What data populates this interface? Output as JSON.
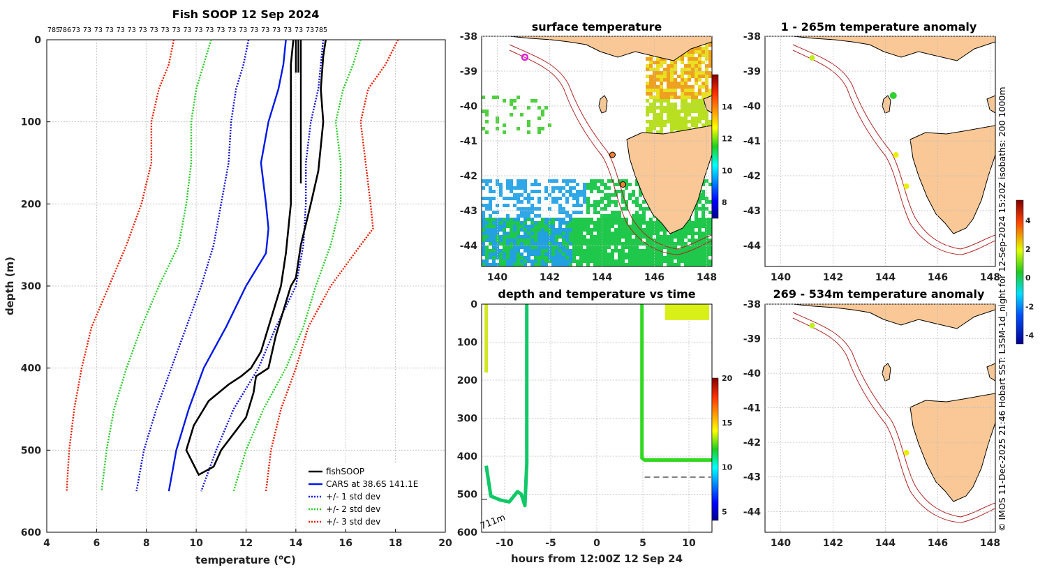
{
  "chart_data": [
    {
      "type": "line",
      "title": "Fish SOOP 12 Sep 2024",
      "xlabel": "temperature (",
      "xlabel_sup": "o",
      "xlabel_tail": "C)",
      "ylabel": "depth (m)",
      "xlim": [
        4,
        20
      ],
      "ylim": [
        600,
        0
      ],
      "xticks": [
        "4",
        "6",
        "8",
        "10",
        "12",
        "14",
        "16",
        "18",
        "20"
      ],
      "yticks": [
        "0",
        "100",
        "200",
        "300",
        "400",
        "500",
        "600"
      ],
      "top_counts": [
        "785",
        "786",
        "73",
        "73",
        "73",
        "73",
        "73",
        "73",
        "73",
        "73",
        "73",
        "73",
        "73",
        "73",
        "73",
        "73",
        "73",
        "73",
        "73",
        "73",
        "73",
        "73",
        "73",
        "73",
        "785"
      ],
      "legend": [
        "fishSOOP",
        "CARS at 38.6S 141.1E",
        "+/- 1 std dev",
        "+/- 2 std dev",
        "+/- 3 std dev"
      ],
      "series": [
        {
          "name": "CARS at 38.6S 141.1E",
          "depth": [
            0,
            30,
            60,
            100,
            150,
            200,
            230,
            260,
            300,
            350,
            400,
            450,
            500,
            550
          ],
          "temp": [
            13.6,
            13.5,
            13.3,
            12.9,
            12.6,
            12.8,
            12.9,
            12.8,
            12.0,
            11.2,
            10.3,
            9.7,
            9.2,
            8.9
          ]
        },
        {
          "name": "+/- 1 std dev lower",
          "depth": [
            0,
            30,
            60,
            100,
            150,
            200,
            250,
            300,
            350,
            400,
            450,
            500,
            550
          ],
          "temp": [
            12.1,
            11.9,
            11.6,
            11.4,
            11.3,
            11.0,
            10.7,
            10.2,
            9.6,
            9.0,
            8.4,
            7.9,
            7.6
          ]
        },
        {
          "name": "+/- 1 std dev upper",
          "depth": [
            0,
            30,
            60,
            100,
            150,
            200,
            250,
            300,
            350,
            400,
            450,
            500,
            550
          ],
          "temp": [
            15.1,
            15.0,
            14.9,
            14.6,
            14.4,
            14.4,
            14.3,
            14.0,
            13.2,
            12.5,
            11.5,
            10.8,
            10.2
          ]
        },
        {
          "name": "+/- 2 std dev lower",
          "depth": [
            0,
            30,
            60,
            100,
            150,
            200,
            250,
            300,
            350,
            400,
            450,
            500,
            550
          ],
          "temp": [
            10.6,
            10.3,
            10.0,
            9.8,
            9.8,
            9.6,
            9.3,
            8.5,
            7.8,
            7.2,
            6.7,
            6.4,
            6.2
          ]
        },
        {
          "name": "+/- 2 std dev upper",
          "depth": [
            0,
            30,
            60,
            100,
            150,
            200,
            250,
            300,
            350,
            400,
            450,
            500,
            550
          ],
          "temp": [
            16.6,
            16.3,
            15.9,
            15.6,
            15.8,
            15.8,
            15.4,
            14.8,
            14.3,
            13.6,
            12.7,
            12.0,
            11.5
          ]
        },
        {
          "name": "+/- 3 std dev lower",
          "depth": [
            0,
            30,
            60,
            100,
            150,
            200,
            250,
            300,
            350,
            400,
            450,
            500,
            550
          ],
          "temp": [
            9.1,
            8.9,
            8.5,
            8.2,
            8.2,
            7.8,
            7.2,
            6.5,
            5.8,
            5.4,
            5.1,
            4.9,
            4.8
          ]
        },
        {
          "name": "+/- 3 std dev upper",
          "depth": [
            0,
            30,
            60,
            100,
            150,
            200,
            230,
            250,
            300,
            350,
            400,
            450,
            500,
            550
          ],
          "temp": [
            18.1,
            17.6,
            16.9,
            16.6,
            16.8,
            17.0,
            17.1,
            16.6,
            15.4,
            14.5,
            14.0,
            13.4,
            13.0,
            12.8
          ]
        },
        {
          "name": "fishSOOP",
          "depth": [
            0,
            20,
            60,
            100,
            130,
            160,
            200,
            250,
            290,
            300,
            320,
            360,
            400,
            410,
            430,
            460,
            480,
            500,
            520,
            530,
            500,
            470,
            440,
            420,
            410,
            400,
            380,
            340,
            300,
            260,
            200,
            100,
            30,
            0
          ],
          "temp": [
            15.2,
            15.1,
            15.0,
            15.1,
            15.0,
            14.9,
            14.6,
            14.2,
            14.0,
            13.8,
            13.6,
            13.2,
            12.9,
            12.4,
            12.3,
            12.0,
            11.5,
            11.0,
            10.7,
            10.1,
            9.6,
            9.9,
            10.5,
            11.3,
            11.8,
            12.2,
            12.6,
            13.0,
            13.4,
            13.6,
            13.8,
            13.8,
            13.8,
            13.9
          ]
        }
      ]
    },
    {
      "type": "heatmap",
      "title": "surface temperature",
      "xticks": [
        "140",
        "142",
        "144",
        "146",
        "148"
      ],
      "yticks": [
        "-38",
        "-39",
        "-40",
        "-41",
        "-42",
        "-43",
        "-44"
      ],
      "xlim": [
        139.4,
        148.2
      ],
      "ylim": [
        -44.6,
        -38
      ],
      "colorbar_ticks": [
        "8",
        "10",
        "12",
        "14"
      ],
      "stations": [
        {
          "lon": 141.05,
          "lat": -38.6
        },
        {
          "lon": 144.4,
          "lat": -41.4
        },
        {
          "lon": 144.8,
          "lat": -42.25
        }
      ]
    },
    {
      "type": "scatter",
      "title": "depth and temperature vs time",
      "xlabel": "hours from 12:00Z 12 Sep 24",
      "xticks": [
        "-10",
        "-5",
        "0",
        "5",
        "10"
      ],
      "yticks": [
        "0",
        "100",
        "200",
        "300",
        "400",
        "500",
        "600"
      ],
      "xlim": [
        -12.5,
        12.5
      ],
      "ylim": [
        600,
        0
      ],
      "annotation": "711m",
      "colorbar_ticks": [
        "5",
        "10",
        "15",
        "20"
      ],
      "segments": [
        {
          "x": [
            -12,
            -12
          ],
          "depth": [
            0,
            180
          ]
        },
        {
          "x": [
            -12,
            -11.5,
            -10.5,
            -9.5,
            -8.6,
            -8.2,
            -7.8,
            -7.6,
            -7.6
          ],
          "depth": [
            425,
            505,
            515,
            520,
            493,
            500,
            530,
            420,
            0
          ]
        },
        {
          "x": [
            4.9,
            4.9,
            5.2,
            12.5
          ],
          "depth": [
            0,
            405,
            410,
            410
          ]
        }
      ],
      "dashed_depth": 455
    },
    {
      "type": "scatter",
      "title": "1 - 265m temperature anomaly",
      "xticks": [
        "140",
        "142",
        "144",
        "146",
        "148"
      ],
      "yticks": [
        "-38",
        "-39",
        "-40",
        "-41",
        "-42",
        "-43",
        "-44"
      ],
      "xlim": [
        139.4,
        148.2
      ],
      "ylim": [
        -44.6,
        -38
      ],
      "colorbar_ticks": [
        "4",
        "2",
        "0",
        "-2",
        "-4"
      ],
      "points": [
        {
          "lon": 141.2,
          "lat": -38.62,
          "anom": 1.0
        },
        {
          "lon": 144.3,
          "lat": -39.7,
          "anom": -0.2
        },
        {
          "lon": 144.4,
          "lat": -41.4,
          "anom": 1.3
        },
        {
          "lon": 144.8,
          "lat": -42.3,
          "anom": 1.5
        }
      ]
    },
    {
      "type": "scatter",
      "title": "269 - 534m temperature anomaly",
      "xticks": [
        "140",
        "142",
        "144",
        "146",
        "148"
      ],
      "yticks": [
        "-38",
        "-39",
        "-40",
        "-41",
        "-42",
        "-43",
        "-44"
      ],
      "xlim": [
        139.4,
        148.2
      ],
      "ylim": [
        -44.6,
        -38
      ],
      "points": [
        {
          "lon": 141.2,
          "lat": -38.62,
          "anom": 1.0
        },
        {
          "lon": 144.8,
          "lat": -42.3,
          "anom": 1.5
        }
      ]
    }
  ],
  "side_text": "© IMOS 11-Dec-2025 21:46 Hobart SST: L3SM-1d_night for 12-Sep-2024 15:20Z isobaths: 200  1000m"
}
